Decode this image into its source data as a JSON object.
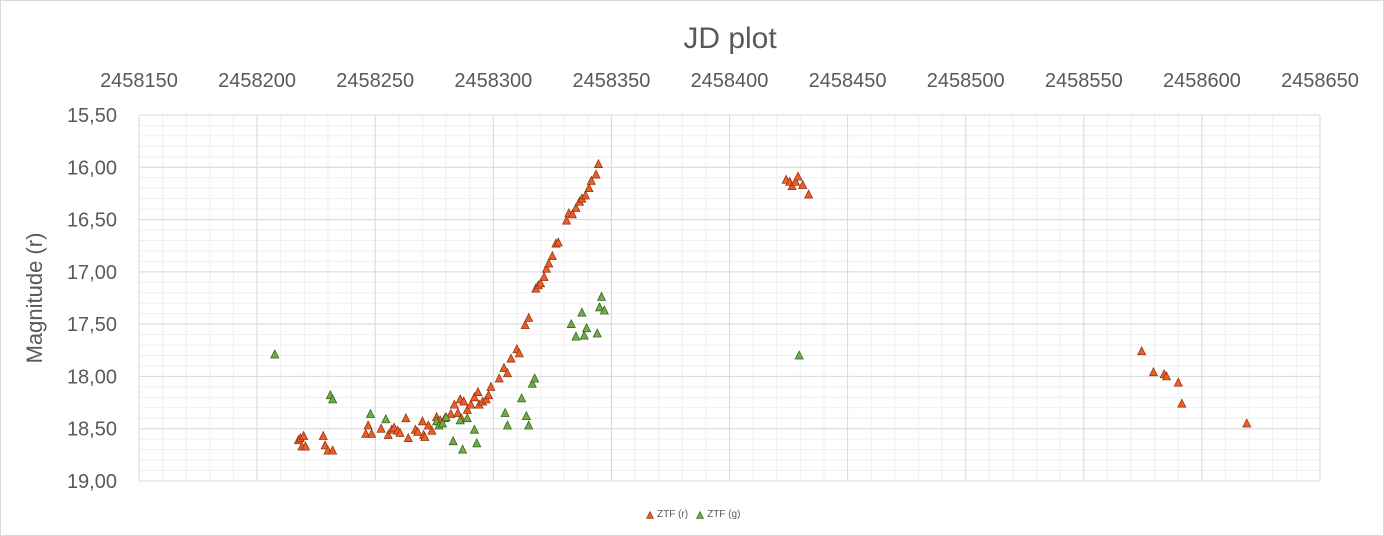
{
  "chart_data": {
    "type": "scatter",
    "title": "JD plot",
    "xlabel": "",
    "ylabel": "Magnitude (r)",
    "xlim": [
      2458150,
      2458650
    ],
    "ylim": [
      15.5,
      19.0
    ],
    "y_reversed": true,
    "x_axis_position": "top",
    "x_ticks": [
      2458150,
      2458200,
      2458250,
      2458300,
      2458350,
      2458400,
      2458450,
      2458500,
      2458550,
      2458600,
      2458650
    ],
    "x_tick_labels": [
      "2458150",
      "2458200",
      "2458250",
      "2458300",
      "2458350",
      "2458400",
      "2458450",
      "2458500",
      "2458550",
      "2458600",
      "2458650"
    ],
    "y_ticks": [
      15.5,
      16.0,
      16.5,
      17.0,
      17.5,
      18.0,
      18.5,
      19.0
    ],
    "y_tick_labels": [
      "15,50",
      "16,00",
      "16,50",
      "17,00",
      "17,50",
      "18,00",
      "18,50",
      "19,00"
    ],
    "grid": true,
    "legend_position": "bottom",
    "series": [
      {
        "name": "ZTF (r)",
        "color": "#ED5E26",
        "marker": "triangle",
        "points": [
          [
            2458217.5,
            18.61
          ],
          [
            2458218.3,
            18.59
          ],
          [
            2458219.0,
            18.67
          ],
          [
            2458219.7,
            18.57
          ],
          [
            2458220.5,
            18.67
          ],
          [
            2458228.0,
            18.57
          ],
          [
            2458228.8,
            18.66
          ],
          [
            2458230.0,
            18.71
          ],
          [
            2458232.0,
            18.71
          ],
          [
            2458246.0,
            18.55
          ],
          [
            2458247.0,
            18.47
          ],
          [
            2458248.5,
            18.55
          ],
          [
            2458252.5,
            18.5
          ],
          [
            2458255.5,
            18.56
          ],
          [
            2458257.0,
            18.51
          ],
          [
            2458258.0,
            18.49
          ],
          [
            2458259.5,
            18.52
          ],
          [
            2458260.5,
            18.54
          ],
          [
            2458263.0,
            18.4
          ],
          [
            2458264.0,
            18.59
          ],
          [
            2458267.0,
            18.51
          ],
          [
            2458268.0,
            18.53
          ],
          [
            2458270.0,
            18.43
          ],
          [
            2458270.5,
            18.56
          ],
          [
            2458271.0,
            18.58
          ],
          [
            2458272.5,
            18.47
          ],
          [
            2458274.0,
            18.52
          ],
          [
            2458276.0,
            18.39
          ],
          [
            2458277.5,
            18.42
          ],
          [
            2458279.5,
            18.4
          ],
          [
            2458282.0,
            18.36
          ],
          [
            2458283.5,
            18.27
          ],
          [
            2458285.0,
            18.35
          ],
          [
            2458286.0,
            18.22
          ],
          [
            2458286.5,
            18.4
          ],
          [
            2458287.5,
            18.24
          ],
          [
            2458289.0,
            18.32
          ],
          [
            2458290.5,
            18.27
          ],
          [
            2458292.0,
            18.2
          ],
          [
            2458293.5,
            18.15
          ],
          [
            2458294.0,
            18.27
          ],
          [
            2458295.5,
            18.24
          ],
          [
            2458297.0,
            18.22
          ],
          [
            2458298.0,
            18.18
          ],
          [
            2458299.0,
            18.1
          ],
          [
            2458302.5,
            18.02
          ],
          [
            2458304.5,
            17.92
          ],
          [
            2458306.0,
            17.97
          ],
          [
            2458307.5,
            17.83
          ],
          [
            2458310.0,
            17.74
          ],
          [
            2458311.0,
            17.78
          ],
          [
            2458313.5,
            17.51
          ],
          [
            2458315.0,
            17.44
          ],
          [
            2458318.0,
            17.16
          ],
          [
            2458319.0,
            17.13
          ],
          [
            2458320.0,
            17.11
          ],
          [
            2458321.5,
            17.05
          ],
          [
            2458322.5,
            16.97
          ],
          [
            2458323.5,
            16.92
          ],
          [
            2458325.0,
            16.85
          ],
          [
            2458326.5,
            16.73
          ],
          [
            2458327.5,
            16.72
          ],
          [
            2458331.0,
            16.51
          ],
          [
            2458332.0,
            16.44
          ],
          [
            2458333.5,
            16.45
          ],
          [
            2458335.0,
            16.39
          ],
          [
            2458336.5,
            16.33
          ],
          [
            2458337.5,
            16.3
          ],
          [
            2458339.0,
            16.27
          ],
          [
            2458340.5,
            16.2
          ],
          [
            2458341.5,
            16.13
          ],
          [
            2458343.5,
            16.07
          ],
          [
            2458344.5,
            15.97
          ],
          [
            2458424.0,
            16.12
          ],
          [
            2458425.5,
            16.14
          ],
          [
            2458426.5,
            16.18
          ],
          [
            2458428.0,
            16.14
          ],
          [
            2458429.0,
            16.09
          ],
          [
            2458431.0,
            16.17
          ],
          [
            2458433.5,
            16.26
          ],
          [
            2458574.5,
            17.76
          ],
          [
            2458579.5,
            17.96
          ],
          [
            2458584.0,
            17.98
          ],
          [
            2458585.0,
            18.0
          ],
          [
            2458590.0,
            18.06
          ],
          [
            2458591.5,
            18.26
          ],
          [
            2458619.0,
            18.45
          ]
        ]
      },
      {
        "name": "ZTF (g)",
        "color": "#6FAD46",
        "marker": "triangle",
        "points": [
          [
            2458207.5,
            17.79
          ],
          [
            2458231.0,
            18.18
          ],
          [
            2458232.0,
            18.22
          ],
          [
            2458248.0,
            18.36
          ],
          [
            2458254.5,
            18.41
          ],
          [
            2458276.0,
            18.43
          ],
          [
            2458277.0,
            18.47
          ],
          [
            2458278.5,
            18.45
          ],
          [
            2458280.0,
            18.39
          ],
          [
            2458283.0,
            18.62
          ],
          [
            2458286.0,
            18.42
          ],
          [
            2458287.0,
            18.7
          ],
          [
            2458289.0,
            18.4
          ],
          [
            2458292.0,
            18.51
          ],
          [
            2458293.0,
            18.64
          ],
          [
            2458305.0,
            18.35
          ],
          [
            2458306.0,
            18.47
          ],
          [
            2458312.0,
            18.21
          ],
          [
            2458314.0,
            18.38
          ],
          [
            2458315.0,
            18.47
          ],
          [
            2458316.5,
            18.07
          ],
          [
            2458317.5,
            18.02
          ],
          [
            2458333.0,
            17.5
          ],
          [
            2458335.0,
            17.62
          ],
          [
            2458337.5,
            17.39
          ],
          [
            2458338.5,
            17.61
          ],
          [
            2458339.5,
            17.54
          ],
          [
            2458344.0,
            17.59
          ],
          [
            2458345.0,
            17.34
          ],
          [
            2458345.8,
            17.24
          ],
          [
            2458347.0,
            17.37
          ],
          [
            2458429.5,
            17.8
          ]
        ]
      }
    ]
  },
  "legend": {
    "r_label": "ZTF (r)",
    "g_label": "ZTF (g)"
  }
}
